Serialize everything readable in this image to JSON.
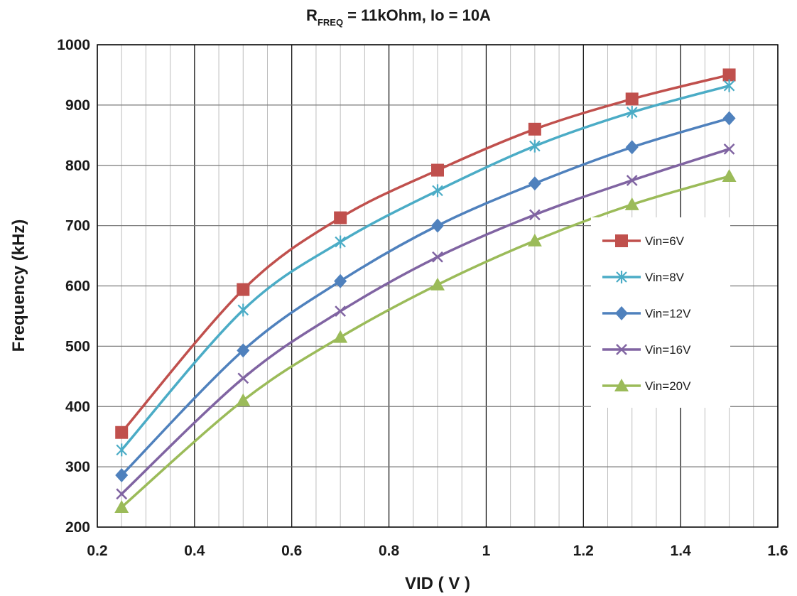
{
  "chart_data": {
    "type": "line",
    "title": {
      "prefix": "R",
      "subscript": "FREQ",
      "rest": " = 11kOhm, Io = 10A"
    },
    "xlabel": "VID ( V )",
    "ylabel": "Frequency (kHz)",
    "xlim": [
      0.2,
      1.6
    ],
    "ylim": [
      200,
      1000
    ],
    "x_ticks": [
      "0.2",
      "0.4",
      "0.6",
      "0.8",
      "1",
      "1.2",
      "1.4",
      "1.6"
    ],
    "y_ticks": [
      "200",
      "300",
      "400",
      "500",
      "600",
      "700",
      "800",
      "900",
      "1000"
    ],
    "grid": true,
    "legend_position": "right",
    "x": [
      0.25,
      0.5,
      0.7,
      0.9,
      1.1,
      1.3,
      1.5
    ],
    "series": [
      {
        "name": "Vin=6V",
        "color": "#c0504d",
        "marker": "square",
        "values": [
          357,
          594,
          713,
          792,
          860,
          910,
          950
        ]
      },
      {
        "name": "Vin=8V",
        "color": "#4bacc6",
        "marker": "asterisk",
        "values": [
          328,
          560,
          673,
          758,
          832,
          888,
          932
        ]
      },
      {
        "name": "Vin=12V",
        "color": "#4f81bd",
        "marker": "diamond",
        "values": [
          286,
          493,
          608,
          700,
          770,
          830,
          878
        ]
      },
      {
        "name": "Vin=16V",
        "color": "#8064a2",
        "marker": "x",
        "values": [
          255,
          447,
          558,
          648,
          718,
          775,
          827
        ]
      },
      {
        "name": "Vin=20V",
        "color": "#9bbb59",
        "marker": "triangle",
        "values": [
          233,
          410,
          515,
          602,
          675,
          735,
          782
        ]
      }
    ]
  }
}
